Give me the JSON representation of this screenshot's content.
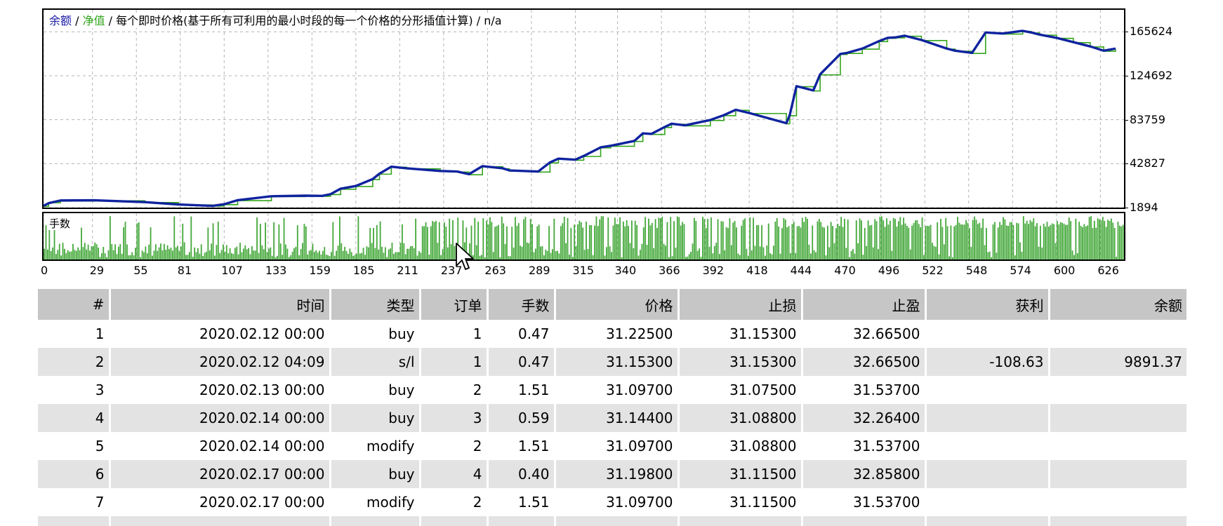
{
  "legend": {
    "balance": "余额",
    "sep1": " / ",
    "equity": "净值",
    "rest": " / 每个即时价格(基于所有可利用的最小时段的每一个价格的分形插值计算) / n/a"
  },
  "lots_label": "手数",
  "colors": {
    "balance": "#0f239e",
    "equity": "#33a51c",
    "lots": "#44a83a",
    "grid": "#b4b4b4",
    "header_bg": "#c6c6c6",
    "row_alt_bg": "#e3e3e3"
  },
  "chart_data": [
    {
      "type": "line",
      "title": "",
      "ylim": [
        1894,
        186090
      ],
      "y_ticks": [
        "165624",
        "124692",
        "83759",
        "42827",
        "1894"
      ],
      "xlim": [
        0,
        640
      ],
      "grid": true,
      "series": [
        {
          "name": "余额",
          "x": [
            0,
            3,
            10,
            30,
            60,
            80,
            100,
            107,
            115,
            135,
            155,
            165,
            170,
            176,
            185,
            195,
            199,
            206,
            215,
            235,
            245,
            252,
            260,
            272,
            276,
            293,
            300,
            305,
            315,
            320,
            330,
            336,
            350,
            355,
            360,
            368,
            372,
            380,
            395,
            403,
            410,
            418,
            440,
            442,
            446,
            456,
            460,
            472,
            476,
            485,
            495,
            500,
            505,
            510,
            520,
            535,
            540,
            550,
            558,
            568,
            580,
            585,
            590,
            600,
            610,
            620,
            628,
            635
          ],
          "y": [
            3500,
            6000,
            8500,
            8700,
            7000,
            4800,
            3500,
            5000,
            8800,
            12500,
            13000,
            12800,
            14400,
            19500,
            22000,
            28500,
            33500,
            40000,
            38500,
            36000,
            35500,
            33000,
            40500,
            38500,
            36500,
            35500,
            44000,
            47500,
            46500,
            50000,
            58000,
            59500,
            64000,
            71000,
            70500,
            77000,
            80000,
            78500,
            83500,
            88000,
            93000,
            90000,
            80500,
            88000,
            115000,
            111000,
            126000,
            145000,
            146000,
            150000,
            157000,
            160000,
            160500,
            162000,
            158000,
            150000,
            148000,
            146000,
            165000,
            164000,
            166500,
            165000,
            163000,
            160000,
            156000,
            152000,
            148000,
            150000
          ]
        },
        {
          "name": "净值",
          "x": [
            0,
            3,
            10,
            30,
            60,
            80,
            100,
            107,
            115,
            135,
            155,
            165,
            170,
            176,
            185,
            195,
            199,
            206,
            215,
            235,
            245,
            252,
            260,
            272,
            276,
            293,
            300,
            305,
            315,
            320,
            330,
            336,
            350,
            355,
            360,
            368,
            372,
            380,
            395,
            403,
            410,
            418,
            440,
            442,
            446,
            456,
            460,
            472,
            476,
            485,
            495,
            500,
            505,
            510,
            520,
            535,
            540,
            550,
            558,
            568,
            580,
            585,
            590,
            600,
            610,
            620,
            628,
            635
          ],
          "y": [
            3000,
            6400,
            8000,
            8200,
            6600,
            4400,
            3200,
            4600,
            8400,
            12100,
            12600,
            12400,
            14000,
            19000,
            21500,
            28000,
            33000,
            39500,
            38000,
            35500,
            35000,
            32500,
            40000,
            38000,
            36000,
            35000,
            43500,
            47000,
            46000,
            49500,
            57500,
            59000,
            63500,
            70500,
            70000,
            76500,
            79500,
            78000,
            83000,
            87500,
            92500,
            89500,
            80000,
            87500,
            114500,
            110500,
            125500,
            144500,
            145500,
            149500,
            156500,
            159500,
            160000,
            161500,
            157500,
            149500,
            147500,
            145500,
            164500,
            163500,
            166000,
            164500,
            162500,
            159500,
            155500,
            151500,
            147500,
            149500
          ]
        }
      ]
    },
    {
      "type": "bar",
      "title": "手数",
      "x_ticks": [
        "0",
        "29",
        "55",
        "81",
        "107",
        "133",
        "159",
        "185",
        "211",
        "237",
        "263",
        "289",
        "315",
        "340",
        "366",
        "392",
        "418",
        "444",
        "470",
        "496",
        "522",
        "548",
        "574",
        "600",
        "626"
      ],
      "xlim": [
        0,
        640
      ],
      "n_bars": 640,
      "series": [
        {
          "name": "手数",
          "note_values_generated": false
        }
      ]
    }
  ],
  "table": {
    "headers": [
      "#",
      "时间",
      "类型",
      "订单",
      "手数",
      "价格",
      "止损",
      "止盈",
      "获利",
      "余额"
    ],
    "rows": [
      [
        "1",
        "2020.02.12 00:00",
        "buy",
        "1",
        "0.47",
        "31.22500",
        "31.15300",
        "32.66500",
        "",
        ""
      ],
      [
        "2",
        "2020.02.12 04:09",
        "s/l",
        "1",
        "0.47",
        "31.15300",
        "31.15300",
        "32.66500",
        "-108.63",
        "9891.37"
      ],
      [
        "3",
        "2020.02.13 00:00",
        "buy",
        "2",
        "1.51",
        "31.09700",
        "31.07500",
        "31.53700",
        "",
        ""
      ],
      [
        "4",
        "2020.02.14 00:00",
        "buy",
        "3",
        "0.59",
        "31.14400",
        "31.08800",
        "32.26400",
        "",
        ""
      ],
      [
        "5",
        "2020.02.14 00:00",
        "modify",
        "2",
        "1.51",
        "31.09700",
        "31.08800",
        "31.53700",
        "",
        ""
      ],
      [
        "6",
        "2020.02.17 00:00",
        "buy",
        "4",
        "0.40",
        "31.19800",
        "31.11500",
        "32.85800",
        "",
        ""
      ],
      [
        "7",
        "2020.02.17 00:00",
        "modify",
        "2",
        "1.51",
        "31.09700",
        "31.11500",
        "31.53700",
        "",
        ""
      ]
    ]
  }
}
